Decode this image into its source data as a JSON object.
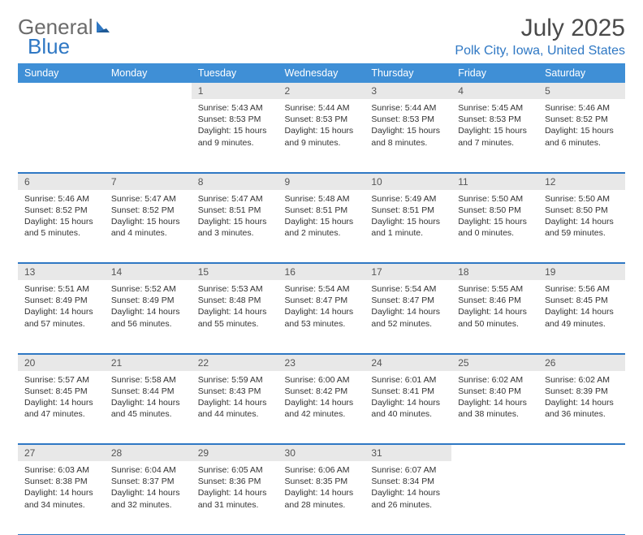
{
  "brand": {
    "part1": "General",
    "part2": "Blue"
  },
  "title": "July 2025",
  "location": "Polk City, Iowa, United States",
  "colors": {
    "header_bg": "#3f8fd6",
    "accent": "#2f78c4",
    "daynum_bg": "#e8e8e8",
    "text": "#333333"
  },
  "dow": [
    "Sunday",
    "Monday",
    "Tuesday",
    "Wednesday",
    "Thursday",
    "Friday",
    "Saturday"
  ],
  "weeks": [
    [
      null,
      null,
      {
        "n": "1",
        "sr": "Sunrise: 5:43 AM",
        "ss": "Sunset: 8:53 PM",
        "dl": "Daylight: 15 hours and 9 minutes."
      },
      {
        "n": "2",
        "sr": "Sunrise: 5:44 AM",
        "ss": "Sunset: 8:53 PM",
        "dl": "Daylight: 15 hours and 9 minutes."
      },
      {
        "n": "3",
        "sr": "Sunrise: 5:44 AM",
        "ss": "Sunset: 8:53 PM",
        "dl": "Daylight: 15 hours and 8 minutes."
      },
      {
        "n": "4",
        "sr": "Sunrise: 5:45 AM",
        "ss": "Sunset: 8:53 PM",
        "dl": "Daylight: 15 hours and 7 minutes."
      },
      {
        "n": "5",
        "sr": "Sunrise: 5:46 AM",
        "ss": "Sunset: 8:52 PM",
        "dl": "Daylight: 15 hours and 6 minutes."
      }
    ],
    [
      {
        "n": "6",
        "sr": "Sunrise: 5:46 AM",
        "ss": "Sunset: 8:52 PM",
        "dl": "Daylight: 15 hours and 5 minutes."
      },
      {
        "n": "7",
        "sr": "Sunrise: 5:47 AM",
        "ss": "Sunset: 8:52 PM",
        "dl": "Daylight: 15 hours and 4 minutes."
      },
      {
        "n": "8",
        "sr": "Sunrise: 5:47 AM",
        "ss": "Sunset: 8:51 PM",
        "dl": "Daylight: 15 hours and 3 minutes."
      },
      {
        "n": "9",
        "sr": "Sunrise: 5:48 AM",
        "ss": "Sunset: 8:51 PM",
        "dl": "Daylight: 15 hours and 2 minutes."
      },
      {
        "n": "10",
        "sr": "Sunrise: 5:49 AM",
        "ss": "Sunset: 8:51 PM",
        "dl": "Daylight: 15 hours and 1 minute."
      },
      {
        "n": "11",
        "sr": "Sunrise: 5:50 AM",
        "ss": "Sunset: 8:50 PM",
        "dl": "Daylight: 15 hours and 0 minutes."
      },
      {
        "n": "12",
        "sr": "Sunrise: 5:50 AM",
        "ss": "Sunset: 8:50 PM",
        "dl": "Daylight: 14 hours and 59 minutes."
      }
    ],
    [
      {
        "n": "13",
        "sr": "Sunrise: 5:51 AM",
        "ss": "Sunset: 8:49 PM",
        "dl": "Daylight: 14 hours and 57 minutes."
      },
      {
        "n": "14",
        "sr": "Sunrise: 5:52 AM",
        "ss": "Sunset: 8:49 PM",
        "dl": "Daylight: 14 hours and 56 minutes."
      },
      {
        "n": "15",
        "sr": "Sunrise: 5:53 AM",
        "ss": "Sunset: 8:48 PM",
        "dl": "Daylight: 14 hours and 55 minutes."
      },
      {
        "n": "16",
        "sr": "Sunrise: 5:54 AM",
        "ss": "Sunset: 8:47 PM",
        "dl": "Daylight: 14 hours and 53 minutes."
      },
      {
        "n": "17",
        "sr": "Sunrise: 5:54 AM",
        "ss": "Sunset: 8:47 PM",
        "dl": "Daylight: 14 hours and 52 minutes."
      },
      {
        "n": "18",
        "sr": "Sunrise: 5:55 AM",
        "ss": "Sunset: 8:46 PM",
        "dl": "Daylight: 14 hours and 50 minutes."
      },
      {
        "n": "19",
        "sr": "Sunrise: 5:56 AM",
        "ss": "Sunset: 8:45 PM",
        "dl": "Daylight: 14 hours and 49 minutes."
      }
    ],
    [
      {
        "n": "20",
        "sr": "Sunrise: 5:57 AM",
        "ss": "Sunset: 8:45 PM",
        "dl": "Daylight: 14 hours and 47 minutes."
      },
      {
        "n": "21",
        "sr": "Sunrise: 5:58 AM",
        "ss": "Sunset: 8:44 PM",
        "dl": "Daylight: 14 hours and 45 minutes."
      },
      {
        "n": "22",
        "sr": "Sunrise: 5:59 AM",
        "ss": "Sunset: 8:43 PM",
        "dl": "Daylight: 14 hours and 44 minutes."
      },
      {
        "n": "23",
        "sr": "Sunrise: 6:00 AM",
        "ss": "Sunset: 8:42 PM",
        "dl": "Daylight: 14 hours and 42 minutes."
      },
      {
        "n": "24",
        "sr": "Sunrise: 6:01 AM",
        "ss": "Sunset: 8:41 PM",
        "dl": "Daylight: 14 hours and 40 minutes."
      },
      {
        "n": "25",
        "sr": "Sunrise: 6:02 AM",
        "ss": "Sunset: 8:40 PM",
        "dl": "Daylight: 14 hours and 38 minutes."
      },
      {
        "n": "26",
        "sr": "Sunrise: 6:02 AM",
        "ss": "Sunset: 8:39 PM",
        "dl": "Daylight: 14 hours and 36 minutes."
      }
    ],
    [
      {
        "n": "27",
        "sr": "Sunrise: 6:03 AM",
        "ss": "Sunset: 8:38 PM",
        "dl": "Daylight: 14 hours and 34 minutes."
      },
      {
        "n": "28",
        "sr": "Sunrise: 6:04 AM",
        "ss": "Sunset: 8:37 PM",
        "dl": "Daylight: 14 hours and 32 minutes."
      },
      {
        "n": "29",
        "sr": "Sunrise: 6:05 AM",
        "ss": "Sunset: 8:36 PM",
        "dl": "Daylight: 14 hours and 31 minutes."
      },
      {
        "n": "30",
        "sr": "Sunrise: 6:06 AM",
        "ss": "Sunset: 8:35 PM",
        "dl": "Daylight: 14 hours and 28 minutes."
      },
      {
        "n": "31",
        "sr": "Sunrise: 6:07 AM",
        "ss": "Sunset: 8:34 PM",
        "dl": "Daylight: 14 hours and 26 minutes."
      },
      null,
      null
    ]
  ]
}
